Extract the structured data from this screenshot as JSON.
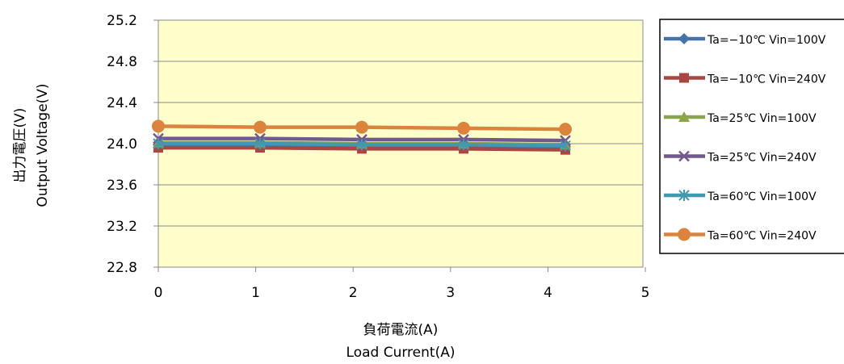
{
  "chart_data": {
    "type": "line",
    "xlabel_jp": "負荷電流(A)",
    "xlabel_en": "Load Current(A)",
    "ylabel_jp": "出力電圧(V)",
    "ylabel_en": "Output  Voltage(V)",
    "xlim": [
      0,
      5
    ],
    "ylim": [
      22.8,
      25.2
    ],
    "x_ticks": [
      "0",
      "1",
      "2",
      "3",
      "4",
      "5"
    ],
    "y_ticks": [
      "22.8",
      "23.2",
      "23.6",
      "24.0",
      "24.4",
      "24.8",
      "25.2"
    ],
    "grid": "horizontal",
    "plot_background": "#FFFFCC",
    "legend_position": "right",
    "x": [
      0,
      1.05,
      2.1,
      3.15,
      4.2
    ],
    "series": [
      {
        "name": "Ta=−10℃ Vin=100V",
        "color": "#4572A7",
        "marker": "diamond",
        "values": [
          23.99,
          23.99,
          23.98,
          23.98,
          23.97
        ]
      },
      {
        "name": "Ta=−10℃ Vin=240V",
        "color": "#AA4643",
        "marker": "square",
        "values": [
          23.96,
          23.96,
          23.95,
          23.95,
          23.94
        ]
      },
      {
        "name": "Ta=25℃ Vin=100V",
        "color": "#89A54E",
        "marker": "triangle",
        "values": [
          24.01,
          24.01,
          24.0,
          24.0,
          23.99
        ]
      },
      {
        "name": "Ta=25℃ Vin=240V",
        "color": "#71588F",
        "marker": "x",
        "values": [
          24.05,
          24.05,
          24.04,
          24.04,
          24.03
        ]
      },
      {
        "name": "Ta=60℃ Vin=100V",
        "color": "#4198AF",
        "marker": "star",
        "values": [
          24.0,
          24.0,
          23.99,
          23.99,
          23.98
        ]
      },
      {
        "name": "Ta=60℃ Vin=240V",
        "color": "#DB843D",
        "marker": "circle",
        "values": [
          24.17,
          24.16,
          24.16,
          24.15,
          24.14
        ]
      }
    ]
  }
}
